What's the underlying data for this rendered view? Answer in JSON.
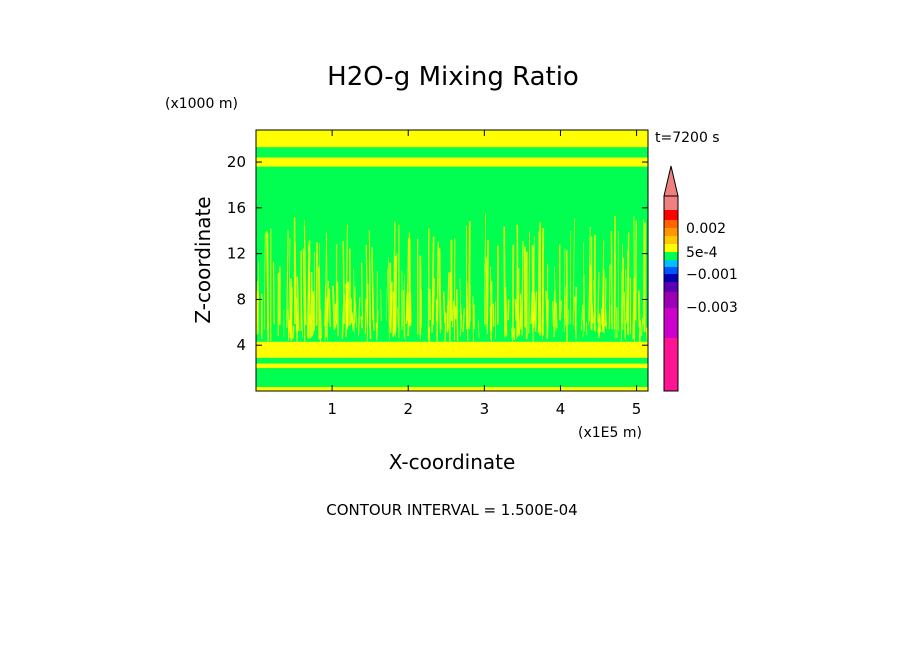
{
  "chart_data": {
    "type": "heatmap",
    "title": "H2O-g Mixing Ratio",
    "xlabel": "X-coordinate",
    "ylabel": "Z-coordinate",
    "x_scale_label": "(x1E5 m)",
    "y_scale_label": "(x1000 m)",
    "time_label": "t=7200 s",
    "contour_note": "CONTOUR INTERVAL = 1.500E-04",
    "xlim": [
      0,
      5.15
    ],
    "ylim": [
      0,
      22.8
    ],
    "x_ticks": [
      1,
      2,
      3,
      4,
      5
    ],
    "x_tick_labels": [
      "1",
      "2",
      "3",
      "4",
      "5"
    ],
    "y_ticks": [
      4,
      8,
      12,
      16,
      20
    ],
    "y_tick_labels": [
      "4",
      "8",
      "12",
      "16",
      "20"
    ],
    "background_color": "#00ff50",
    "bands": [
      {
        "z_min": 0.0,
        "z_max": 0.35,
        "color": "#ffff00"
      },
      {
        "z_min": 0.35,
        "z_max": 2.0,
        "color": "#00ff50"
      },
      {
        "z_min": 2.0,
        "z_max": 2.4,
        "color": "#ffff00"
      },
      {
        "z_min": 2.4,
        "z_max": 2.9,
        "color": "#00ff50"
      },
      {
        "z_min": 2.9,
        "z_max": 4.3,
        "color": "#ffff00"
      },
      {
        "z_min": 19.6,
        "z_max": 20.4,
        "color": "#ffff00"
      },
      {
        "z_min": 21.3,
        "z_max": 22.8,
        "color": "#ffff00"
      }
    ],
    "colorbar": {
      "colors": [
        "#ff1493",
        "#cc00cc",
        "#9b00b4",
        "#5a00b4",
        "#0000b4",
        "#0055ff",
        "#00bfff",
        "#00ff50",
        "#ffff00",
        "#ffc800",
        "#ff9600",
        "#ff6400",
        "#ff0000",
        "#f08080"
      ],
      "tick_labels": [
        "0.002",
        "5e-4",
        "−0.001",
        "−0.003"
      ],
      "extend": "max"
    }
  }
}
